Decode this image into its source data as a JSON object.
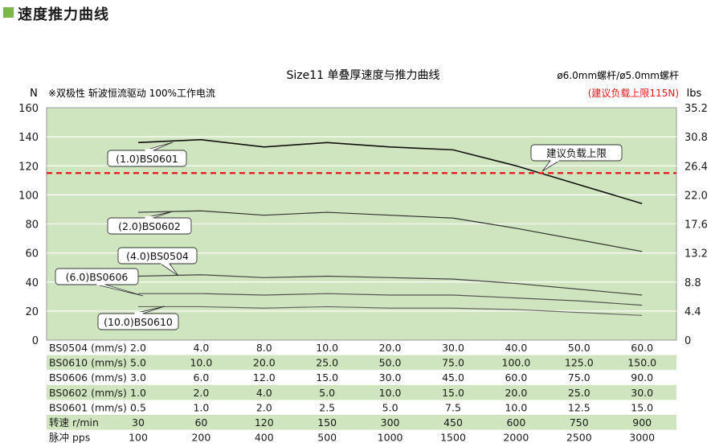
{
  "section_title": "速度推力曲线",
  "chart_data": {
    "type": "line",
    "title": "Size11 单叠厚速度与推力曲线",
    "note_left": "※双极性 斩波恒流驱动 100%工作电流",
    "note_right": "ø6.0mm螺杆/ø5.0mm螺杆",
    "limit_note": "(建议负载上限115N)",
    "y_left_unit": "N",
    "y_right_unit": "lbs",
    "y_left_ticks": [
      "160",
      "140",
      "120",
      "100",
      "80",
      "60",
      "40",
      "20",
      "0"
    ],
    "y_right_ticks": [
      "35.2",
      "30.8",
      "26.4",
      "22.0",
      "17.6",
      "13.2",
      "8.8",
      "4.4",
      "0"
    ],
    "ylim": [
      0,
      160
    ],
    "limit_value": 115,
    "limit_label": "建议负载上限",
    "limit_color": "#e8131b",
    "background_color": "#cfe5bf",
    "x_points": 9,
    "series": [
      {
        "name": "(1.0)BS0601",
        "values": [
          136,
          138,
          133,
          136,
          133,
          131,
          120,
          107,
          94
        ]
      },
      {
        "name": "(2.0)BS0602",
        "values": [
          88,
          89,
          86,
          88,
          86,
          84,
          77,
          69,
          61
        ]
      },
      {
        "name": "(4.0)BS0504",
        "values": [
          44,
          45,
          43,
          44,
          43,
          42,
          39,
          35,
          31
        ]
      },
      {
        "name": "(6.0)BS0606",
        "values": [
          32,
          32,
          31,
          32,
          31,
          31,
          29,
          27,
          24
        ]
      },
      {
        "name": "(10.0)BS0610",
        "values": [
          23,
          23,
          22,
          23,
          22,
          22,
          21,
          19,
          17
        ]
      }
    ],
    "table": [
      {
        "label": "BS0504 (mm/s)",
        "values": [
          "2.0",
          "4.0",
          "8.0",
          "10.0",
          "20.0",
          "30.0",
          "40.0",
          "50.0",
          "60.0"
        ],
        "shaded": false
      },
      {
        "label": "BS0610 (mm/s)",
        "values": [
          "5.0",
          "10.0",
          "20.0",
          "25.0",
          "50.0",
          "75.0",
          "100.0",
          "125.0",
          "150.0"
        ],
        "shaded": true
      },
      {
        "label": "BS0606 (mm/s)",
        "values": [
          "3.0",
          "6.0",
          "12.0",
          "15.0",
          "30.0",
          "45.0",
          "60.0",
          "75.0",
          "90.0"
        ],
        "shaded": false
      },
      {
        "label": "BS0602 (mm/s)",
        "values": [
          "1.0",
          "2.0",
          "4.0",
          "5.0",
          "10.0",
          "15.0",
          "20.0",
          "25.0",
          "30.0"
        ],
        "shaded": true
      },
      {
        "label": "BS0601 (mm/s)",
        "values": [
          "0.5",
          "1.0",
          "2.0",
          "2.5",
          "5.0",
          "7.5",
          "10.0",
          "12.5",
          "15.0"
        ],
        "shaded": false
      },
      {
        "label": "转速 r/min",
        "values": [
          "30",
          "60",
          "120",
          "150",
          "300",
          "450",
          "600",
          "750",
          "900"
        ],
        "shaded": true
      },
      {
        "label": "脉冲 pps",
        "values": [
          "100",
          "200",
          "400",
          "500",
          "1000",
          "1500",
          "2000",
          "2500",
          "3000"
        ],
        "shaded": false
      }
    ]
  }
}
